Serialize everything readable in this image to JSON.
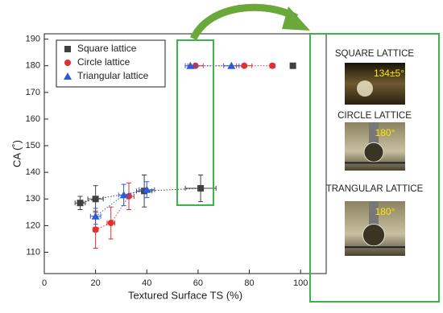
{
  "chart_data": {
    "type": "scatter",
    "x_label": "Textured Surface TS (%)",
    "y_label": "CA (˚)",
    "xlim": [
      0,
      110
    ],
    "ylim": [
      102,
      192
    ],
    "xticks": [
      0,
      20,
      40,
      60,
      80,
      100
    ],
    "yticks": [
      110,
      120,
      130,
      140,
      150,
      160,
      170,
      180,
      190
    ],
    "legend": "upper left",
    "series": [
      {
        "name": "Square lattice",
        "color": "#404040",
        "marker": "square",
        "x": [
          14,
          20,
          39,
          61,
          97
        ],
        "values": [
          128.5,
          130,
          133,
          134,
          180
        ],
        "xerr": [
          2,
          3,
          3,
          6,
          0
        ],
        "yerr": [
          2.5,
          5,
          6,
          5,
          0
        ]
      },
      {
        "name": "Circle lattice",
        "color": "#e03030",
        "marker": "circle",
        "x": [
          20,
          26,
          33,
          59,
          78,
          89
        ],
        "values": [
          118.5,
          121,
          131,
          180,
          180,
          180
        ],
        "xerr": [
          1,
          1.5,
          2,
          3,
          3,
          1
        ],
        "yerr": [
          7,
          6,
          5,
          0,
          0,
          0
        ]
      },
      {
        "name": "Triangular lattice",
        "color": "#2a5cd6",
        "marker": "triangle",
        "x": [
          20,
          31,
          40,
          57,
          73
        ],
        "values": [
          123.5,
          131.5,
          133.5,
          180,
          180
        ],
        "xerr": [
          2,
          2,
          3,
          2,
          3
        ],
        "yerr": [
          3,
          4,
          3,
          0,
          0
        ]
      }
    ]
  },
  "insets": [
    {
      "label": "SQUARE LATTICE",
      "angle": "134±5°"
    },
    {
      "label": "CIRCLE LATTICE",
      "angle": "180°"
    },
    {
      "label": "TRANGULAR LATTICE",
      "angle": "180°"
    }
  ]
}
